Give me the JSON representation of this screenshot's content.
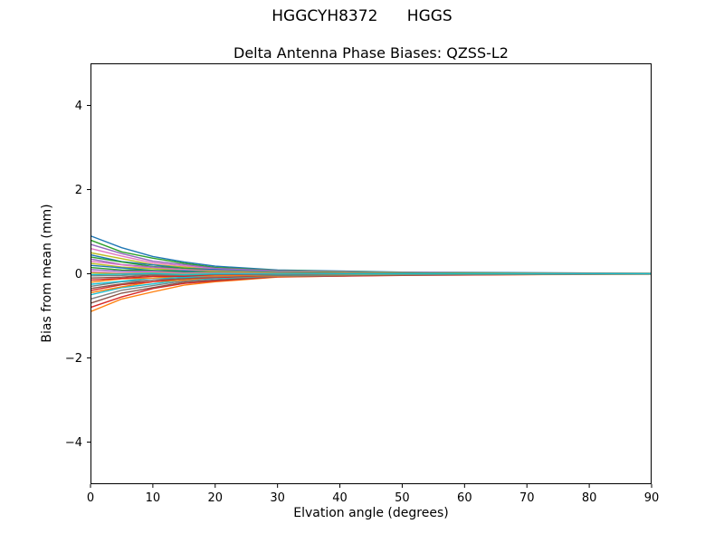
{
  "page": {
    "suptitle": "HGGCYH8372      HGGS"
  },
  "chart_data": {
    "type": "line",
    "title": "Delta Antenna Phase Biases: QZSS-L2",
    "xlabel": "Elvation angle (degrees)",
    "ylabel": "Bias from mean (mm)",
    "xlim": [
      0,
      90
    ],
    "ylim": [
      -5,
      5
    ],
    "xticks": [
      0,
      10,
      20,
      30,
      40,
      50,
      60,
      70,
      80,
      90
    ],
    "yticks": [
      -4,
      -2,
      0,
      2,
      4
    ],
    "grid": false,
    "legend": "none",
    "x": [
      0,
      5,
      10,
      15,
      20,
      30,
      50,
      90
    ],
    "palette": [
      "#1f77b4",
      "#ff7f0e",
      "#2ca02c",
      "#d62728",
      "#9467bd",
      "#8c564b",
      "#e377c2",
      "#7f7f7f",
      "#bcbd22",
      "#17becf"
    ],
    "series": [
      {
        "values": [
          0.9,
          0.62,
          0.41,
          0.28,
          0.18,
          0.09,
          0.04,
          0.01
        ]
      },
      {
        "values": [
          -0.9,
          -0.6,
          -0.43,
          -0.27,
          -0.19,
          -0.08,
          -0.03,
          -0.01
        ]
      },
      {
        "values": [
          0.8,
          0.52,
          0.37,
          0.25,
          0.15,
          0.08,
          0.03,
          0.0
        ]
      },
      {
        "values": [
          -0.8,
          -0.55,
          -0.35,
          -0.23,
          -0.17,
          -0.07,
          -0.04,
          0.0
        ]
      },
      {
        "values": [
          0.7,
          0.48,
          0.3,
          0.22,
          0.13,
          0.07,
          0.02,
          0.01
        ]
      },
      {
        "values": [
          -0.7,
          -0.46,
          -0.33,
          -0.2,
          -0.15,
          -0.06,
          -0.03,
          0.0
        ]
      },
      {
        "values": [
          0.6,
          0.42,
          0.26,
          0.19,
          0.11,
          0.06,
          0.03,
          0.0
        ]
      },
      {
        "values": [
          -0.6,
          -0.39,
          -0.28,
          -0.17,
          -0.12,
          -0.06,
          -0.02,
          -0.01
        ]
      },
      {
        "values": [
          0.5,
          0.36,
          0.22,
          0.16,
          0.09,
          0.05,
          0.02,
          0.0
        ]
      },
      {
        "values": [
          -0.5,
          -0.33,
          -0.24,
          -0.14,
          -0.11,
          -0.04,
          -0.02,
          0.0
        ]
      },
      {
        "values": [
          0.45,
          0.29,
          0.21,
          0.13,
          0.1,
          0.05,
          0.01,
          0.01
        ]
      },
      {
        "values": [
          -0.45,
          -0.31,
          -0.19,
          -0.15,
          -0.08,
          -0.05,
          -0.02,
          0.0
        ]
      },
      {
        "values": [
          0.4,
          0.28,
          0.17,
          0.13,
          0.07,
          0.04,
          0.02,
          0.0
        ]
      },
      {
        "values": [
          -0.4,
          -0.26,
          -0.19,
          -0.11,
          -0.09,
          -0.03,
          -0.01,
          -0.01
        ]
      },
      {
        "values": [
          0.35,
          0.22,
          0.16,
          0.1,
          0.08,
          0.04,
          0.01,
          0.0
        ]
      },
      {
        "values": [
          -0.35,
          -0.24,
          -0.15,
          -0.12,
          -0.06,
          -0.04,
          -0.02,
          0.0
        ]
      },
      {
        "values": [
          0.3,
          0.21,
          0.13,
          0.1,
          0.05,
          0.03,
          0.01,
          0.0
        ]
      },
      {
        "values": [
          -0.3,
          -0.19,
          -0.15,
          -0.08,
          -0.07,
          -0.02,
          -0.01,
          0.0
        ]
      },
      {
        "values": [
          0.25,
          0.16,
          0.12,
          0.07,
          0.06,
          0.03,
          0.01,
          0.01
        ]
      },
      {
        "values": [
          -0.25,
          -0.18,
          -0.1,
          -0.09,
          -0.04,
          -0.03,
          -0.01,
          0.0
        ]
      },
      {
        "values": [
          0.2,
          0.14,
          0.08,
          0.07,
          0.03,
          0.02,
          0.01,
          0.0
        ]
      },
      {
        "values": [
          -0.2,
          -0.12,
          -0.1,
          -0.05,
          -0.05,
          -0.02,
          -0.01,
          0.0
        ]
      },
      {
        "values": [
          0.15,
          0.09,
          0.08,
          0.04,
          0.04,
          0.01,
          0.01,
          0.0
        ]
      },
      {
        "values": [
          -0.15,
          -0.11,
          -0.06,
          -0.06,
          -0.02,
          -0.02,
          0.0,
          0.0
        ]
      },
      {
        "values": [
          0.1,
          0.06,
          0.06,
          0.02,
          0.03,
          0.01,
          0.0,
          0.0
        ]
      },
      {
        "values": [
          -0.1,
          -0.08,
          -0.03,
          -0.04,
          -0.01,
          -0.01,
          0.0,
          0.0
        ]
      },
      {
        "values": [
          0.05,
          0.02,
          0.04,
          0.01,
          0.02,
          0.0,
          0.0,
          0.0
        ]
      },
      {
        "values": [
          -0.05,
          -0.04,
          -0.01,
          -0.03,
          0.0,
          -0.01,
          0.0,
          0.0
        ]
      },
      {
        "values": [
          0.02,
          0.0,
          0.02,
          -0.01,
          0.01,
          0.0,
          0.0,
          0.0
        ]
      },
      {
        "values": [
          -0.02,
          -0.01,
          0.01,
          -0.02,
          0.0,
          -0.01,
          0.0,
          0.0
        ]
      }
    ]
  }
}
